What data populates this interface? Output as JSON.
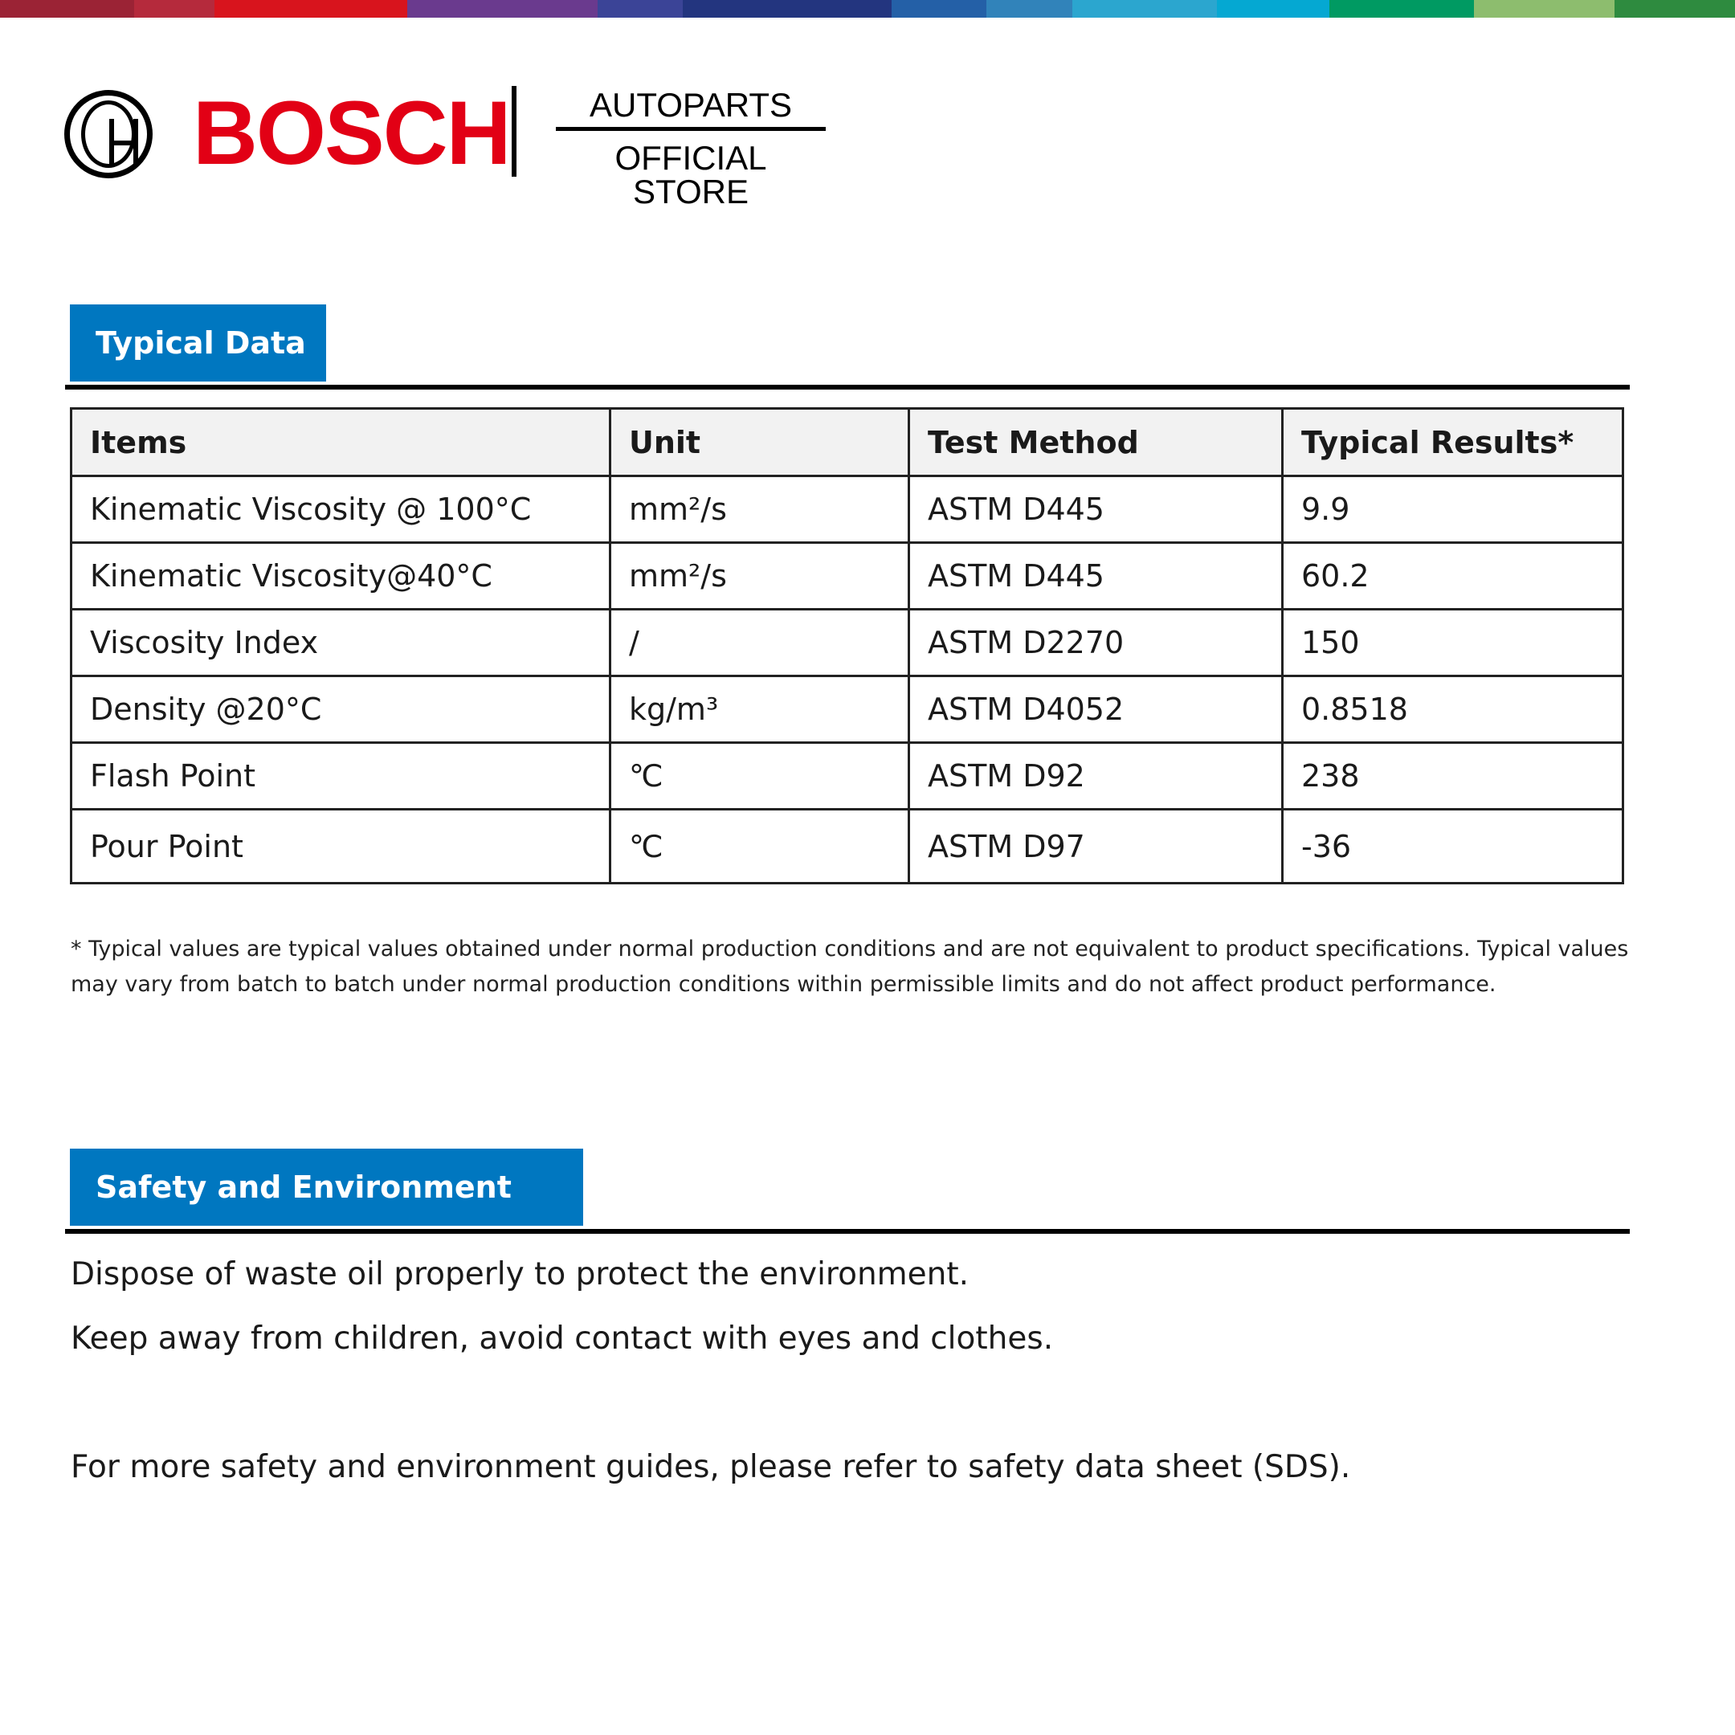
{
  "header_bar_colors": [
    "#9b2335",
    "#b52a3c",
    "#d8141d",
    "#6a3a8e",
    "#3b4497",
    "#23357f",
    "#2460a7",
    "#3183ba",
    "#2ba6cf",
    "#05a8d2",
    "#009a62",
    "#8dbd6e",
    "#2e8b3f"
  ],
  "brand": {
    "name": "BOSCH",
    "store_line1": "AUTOPARTS",
    "store_line2": "OFFICIAL STORE",
    "brand_color": "#e20015",
    "logo_icon": "bosch-armature-icon"
  },
  "typical_data": {
    "heading": "Typical Data",
    "columns": [
      "Items",
      "Unit",
      "Test Method",
      "Typical Results*"
    ],
    "rows": [
      [
        "Kinematic Viscosity @ 100°C",
        "mm²/s",
        "ASTM D445",
        "9.9"
      ],
      [
        "Kinematic Viscosity@40°C",
        "mm²/s",
        "ASTM D445",
        "60.2"
      ],
      [
        "Viscosity Index",
        "/",
        "ASTM D2270",
        "150"
      ],
      [
        "Density @20°C",
        "kg/m³",
        "ASTM D4052",
        "0.8518"
      ],
      [
        "Flash Point",
        "℃",
        "ASTM D92",
        "238"
      ],
      [
        "Pour Point",
        "℃",
        "ASTM D97",
        "-36"
      ]
    ],
    "footnote": "* Typical values are typical values obtained under normal production conditions and are not equivalent to product specifications. Typical values may vary from batch to batch under normal production conditions within permissible limits and do not affect product performance."
  },
  "safety": {
    "heading": "Safety and Environment",
    "lines": [
      "Dispose of waste oil properly to protect the environment.",
      "Keep away from children, avoid contact with eyes and clothes.",
      "For more safety and environment guides, please refer to safety data sheet (SDS)."
    ]
  },
  "accent_color": "#0077c0"
}
